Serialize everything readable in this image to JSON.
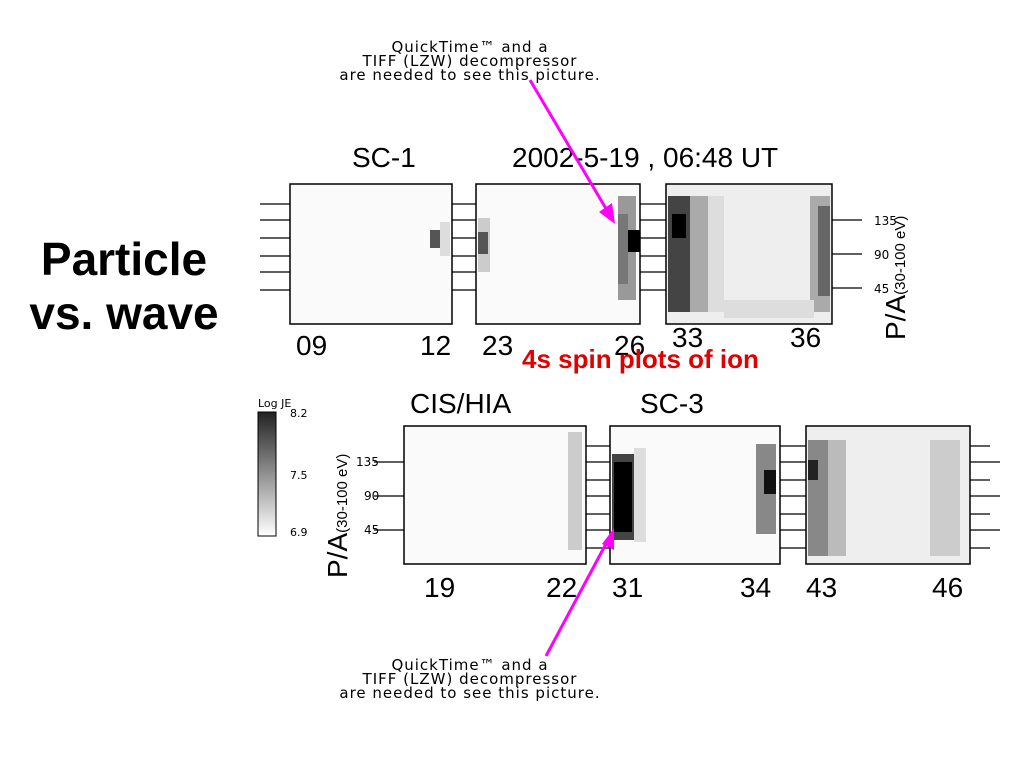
{
  "quicktime_top": {
    "line1": "QuickTime™ and a",
    "line2": "TIFF (LZW) decompressor",
    "line3": "are needed to see this picture."
  },
  "quicktime_bottom": {
    "line1": "QuickTime™ and a",
    "line2": "TIFF (LZW) decompressor",
    "line3": "are needed to see this picture."
  },
  "side_title": {
    "line1": "Particle",
    "line2": "vs. wave"
  },
  "caption": "4s spin plots of ion",
  "top_panel": {
    "sc_label": "SC-1",
    "date_label": "2002-5-19 , 06:48 UT",
    "axis_label": "P/A",
    "axis_units": "(30-100 eV)",
    "y_ticks": [
      "135",
      "90",
      "45"
    ],
    "x_ticks": [
      "09",
      "12",
      "23",
      "26",
      "33",
      "36"
    ]
  },
  "bottom_panel": {
    "instrument_label": "CIS/HIA",
    "sc_label": "SC-3",
    "axis_label": "P/A",
    "axis_units": "(30-100 eV)",
    "y_ticks": [
      "135",
      "90",
      "45"
    ],
    "x_ticks": [
      "19",
      "22",
      "31",
      "34",
      "43",
      "46"
    ]
  },
  "colorbar": {
    "title": "Log JE",
    "max": "8.2",
    "mid": "7.5",
    "min": "6.9"
  },
  "colors": {
    "arrow": "#ff00ff",
    "caption": "#e00000"
  }
}
